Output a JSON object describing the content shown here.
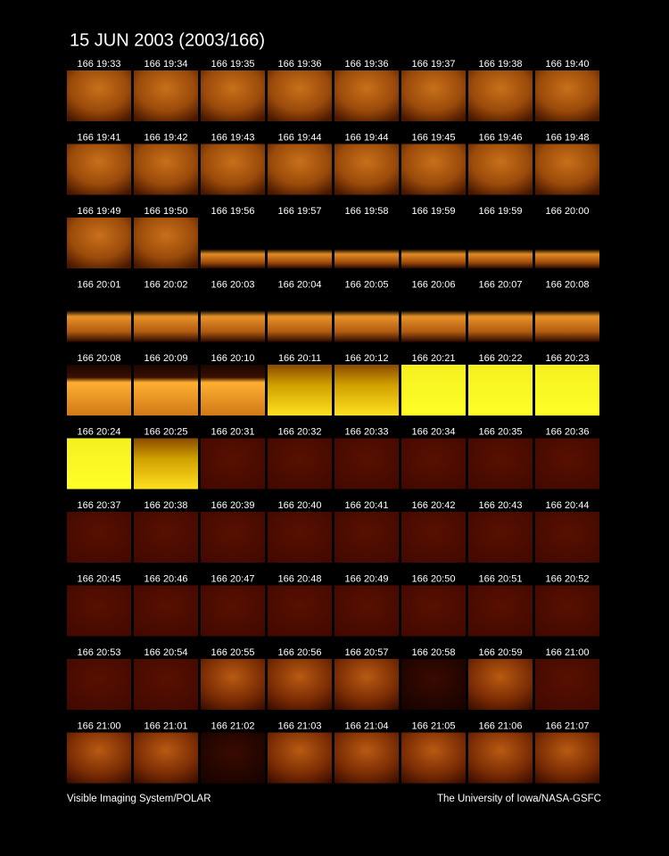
{
  "header": {
    "title": "15 JUN 2003  (2003/166)"
  },
  "panels": {
    "rows": [
      [
        "166 19:33",
        "166 19:34",
        "166 19:35",
        "166 19:36",
        "166 19:36",
        "166 19:37",
        "166 19:38",
        "166 19:40"
      ],
      [
        "166 19:41",
        "166 19:42",
        "166 19:43",
        "166 19:44",
        "166 19:44",
        "166 19:45",
        "166 19:46",
        "166 19:48"
      ],
      [
        "166 19:49",
        "166 19:50",
        "166 19:56",
        "166 19:57",
        "166 19:58",
        "166 19:59",
        "166 19:59",
        "166 20:00"
      ],
      [
        "166 20:01",
        "166 20:02",
        "166 20:03",
        "166 20:04",
        "166 20:05",
        "166 20:06",
        "166 20:07",
        "166 20:08"
      ],
      [
        "166 20:08",
        "166 20:09",
        "166 20:10",
        "166 20:11",
        "166 20:12",
        "166 20:21",
        "166 20:22",
        "166 20:23"
      ],
      [
        "166 20:24",
        "166 20:25",
        "166 20:31",
        "166 20:32",
        "166 20:33",
        "166 20:34",
        "166 20:35",
        "166 20:36"
      ],
      [
        "166 20:37",
        "166 20:38",
        "166 20:39",
        "166 20:40",
        "166 20:41",
        "166 20:42",
        "166 20:43",
        "166 20:44"
      ],
      [
        "166 20:45",
        "166 20:46",
        "166 20:47",
        "166 20:48",
        "166 20:49",
        "166 20:50",
        "166 20:51",
        "166 20:52"
      ],
      [
        "166 20:53",
        "166 20:54",
        "166 20:55",
        "166 20:56",
        "166 20:57",
        "166 20:58",
        "166 20:59",
        "166 21:00"
      ],
      [
        "166 21:00",
        "166 21:01",
        "166 21:02",
        "166 21:03",
        "166 21:04",
        "166 21:05",
        "166 21:06",
        "166 21:07"
      ]
    ]
  },
  "footer": {
    "left": "Visible Imaging System/POLAR",
    "right": "The University of Iowa/NASA-GSFC"
  }
}
